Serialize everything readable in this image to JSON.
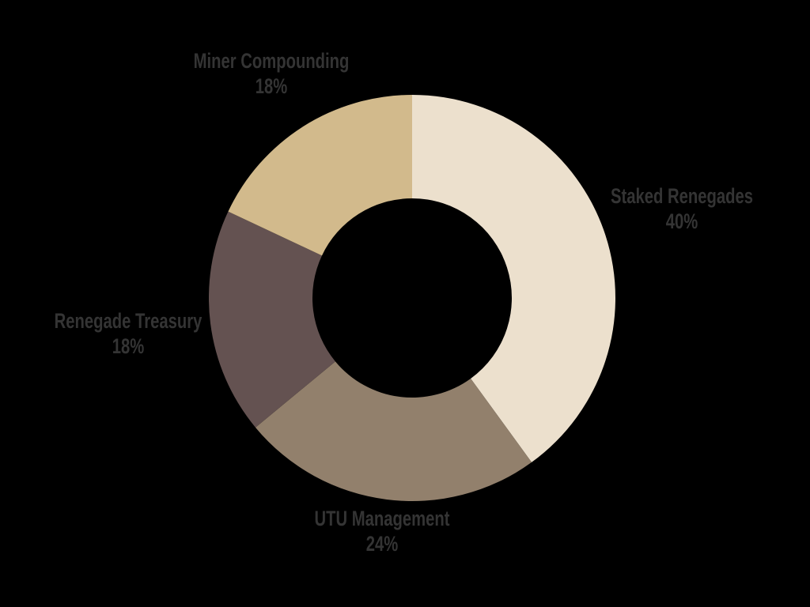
{
  "chart_data": {
    "type": "pie",
    "subtype": "donut",
    "title": "",
    "categories": [
      "Staked Renegades",
      "UTU Management",
      "Renegade Treasury",
      "Miner Compounding"
    ],
    "values": [
      40,
      24,
      18,
      18
    ],
    "value_labels": [
      "40%",
      "24%",
      "18%",
      "18%"
    ],
    "unit": "%",
    "total": 100,
    "colors": [
      "#ECE0CD",
      "#92806C",
      "#645251",
      "#D2BA8C"
    ],
    "label_color": "#343434",
    "background": "#000000",
    "start_angle_deg": 0,
    "direction": "clockwise",
    "inner_radius_ratio": 0.49,
    "legend": "none",
    "labels_position": "outside"
  }
}
